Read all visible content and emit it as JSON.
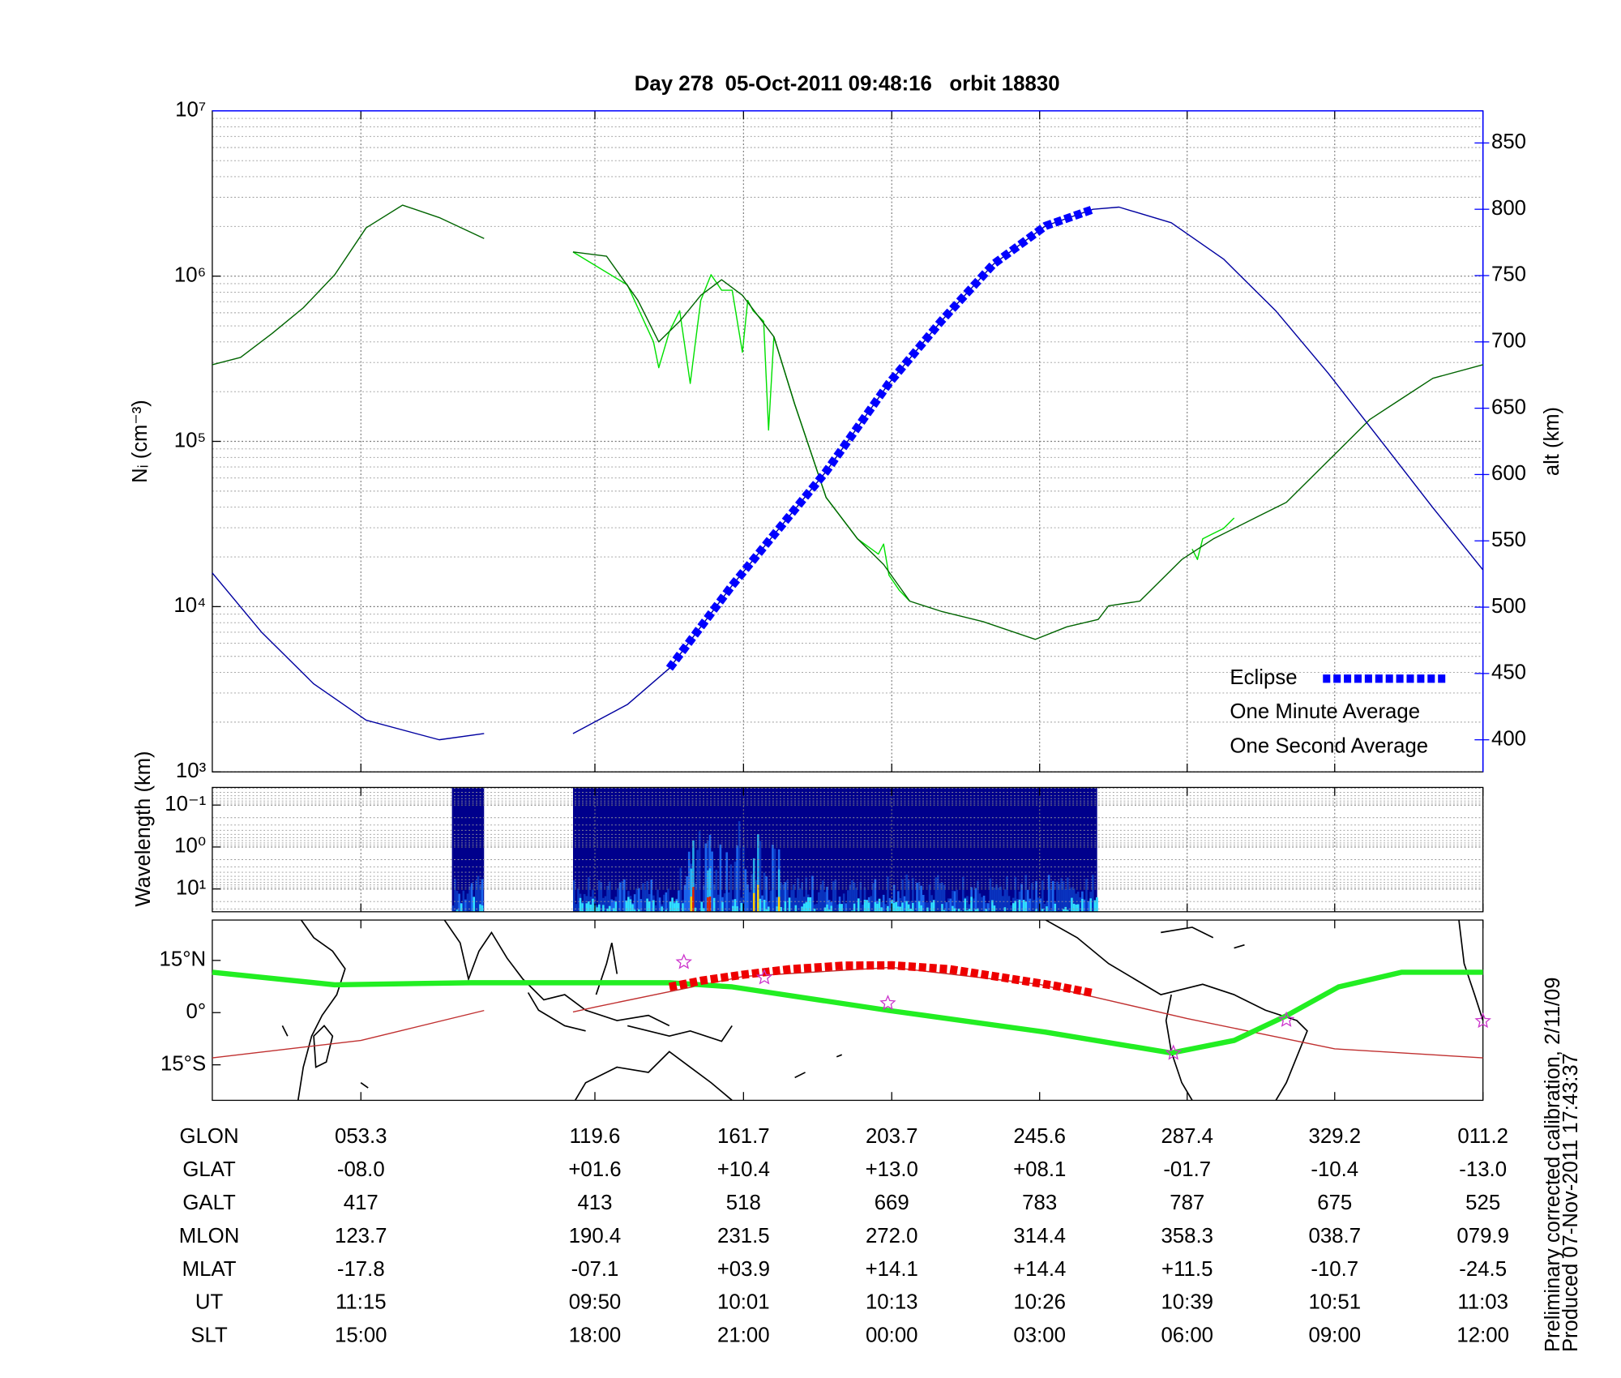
{
  "chart_data": [
    {
      "type": "line",
      "title": "Day 278  05-Oct-2011 09:48:16   orbit 18830",
      "ylabel": "Nᵢ (cm⁻³)",
      "y2label": "alt (km)",
      "xlim": [
        11.2,
        371.2
      ],
      "xticks": [
        53.3,
        119.6,
        161.7,
        203.7,
        245.6,
        287.4,
        329.2,
        371.2
      ],
      "ylim": [
        1000,
        10000000
      ],
      "ylog": true,
      "yticks": [
        {
          "value": 1000,
          "label": "10³"
        },
        {
          "value": 10000,
          "label": "10⁴"
        },
        {
          "value": 100000,
          "label": "10⁵"
        },
        {
          "value": 1000000,
          "label": "10⁶"
        },
        {
          "value": 10000000,
          "label": "10⁷"
        }
      ],
      "y2lim": [
        375.8,
        874.2
      ],
      "y2ticks": [
        400,
        450,
        500,
        550,
        600,
        650,
        700,
        750,
        800,
        850
      ],
      "y2color": "#0000ff",
      "grid": true,
      "legend": "lower right",
      "series": [
        {
          "name": "One Second Average",
          "color": "#00e000",
          "style": "thin",
          "x": [
            113.4,
            128.8,
            136.2,
            137.7,
            140.7,
            143.6,
            146.6,
            148.1,
            149.6,
            152.5,
            155.5,
            158.5,
            161.4,
            162.9,
            164.4,
            167.4,
            168.8,
            170.3,
            176.2,
            185.1,
            194.0,
            199.9,
            201.4,
            202.9,
            205.9,
            208.8,
            250.0,
            288.8,
            290.3,
            291.8,
            294.8,
            297.7,
            300.7
          ],
          "values": [
            1400000,
            885000,
            400000,
            279000,
            462000,
            617000,
            224000,
            400000,
            713000,
            1020000,
            822000,
            822000,
            346000,
            713000,
            617000,
            533000,
            117000,
            430000,
            168000,
            45800,
            25700,
            20800,
            23900,
            15500,
            12500,
            10800,
            null,
            22300,
            19300,
            25700,
            27700,
            29700,
            34400
          ]
        },
        {
          "name": "One Minute Average",
          "color": "#006400",
          "legend_color": "#000000",
          "style": "thin",
          "x": [
            11.2,
            19.2,
            28.1,
            37.0,
            45.9,
            54.8,
            65.1,
            75.5,
            88.2,
            100.0,
            113.4,
            122.9,
            131.8,
            137.7,
            143.6,
            149.6,
            155.5,
            161.4,
            170.3,
            176.2,
            185.1,
            194.0,
            201.4,
            208.8,
            217.7,
            229.6,
            244.4,
            253.3,
            262.2,
            265.1,
            274.0,
            285.9,
            294.8,
            306.6,
            315.5,
            327.3,
            339.2,
            348.1,
            357.0,
            371.2
          ],
          "values": [
            291000,
            322000,
            449000,
            644000,
            1020000,
            1960000,
            2690000,
            2260000,
            1690000,
            null,
            1400000,
            1320000,
            713000,
            400000,
            533000,
            766000,
            951000,
            766000,
            430000,
            168000,
            45800,
            25700,
            18000,
            10800,
            9370,
            8110,
            6340,
            7550,
            8360,
            10100,
            10800,
            19300,
            25700,
            34400,
            42700,
            76000,
            136000,
            181000,
            241000,
            291000
          ]
        },
        {
          "color": "#0000a0",
          "style": "thin",
          "axis": "y2",
          "x": [
            11.2,
            25.1,
            39.9,
            54.8,
            75.5,
            88.2,
            100.0,
            113.4,
            128.8,
            140.7,
            158.5,
            185.1,
            202.9,
            217.7,
            232.5,
            247.3,
            260.7,
            268.1,
            282.9,
            297.7,
            312.5,
            327.3,
            342.2,
            357.0,
            371.2
          ],
          "values": [
            525.8,
            481.3,
            442.2,
            414.8,
            400,
            404.7,
            null,
            404.7,
            426.6,
            453.9,
            516.4,
            602.3,
            668.8,
            715.6,
            758.6,
            787.5,
            800,
            801.6,
            789.8,
            762.5,
            723.4,
            676.6,
            625.8,
            575,
            528.1
          ]
        },
        {
          "name": "Eclipse",
          "color": "#0000ff",
          "style": "dashed-thick",
          "axis": "y2",
          "x": [
            140.7,
            158.5,
            185.1,
            202.9,
            217.7,
            232.5,
            247.3,
            260.7
          ],
          "values": [
            453.9,
            516.4,
            602.3,
            668.8,
            715.6,
            758.6,
            787.5,
            800
          ]
        }
      ]
    },
    {
      "type": "spectrogram",
      "ylabel": "Wavelength (km)",
      "xlim": [
        11.2,
        371.2
      ],
      "xticks": [
        53.3,
        119.6,
        161.7,
        203.7,
        245.6,
        287.4,
        329.2,
        371.2
      ],
      "ylim": [
        0.038,
        35
      ],
      "ylog": true,
      "y_inverted": true,
      "yticks": [
        {
          "value": 0.1,
          "label": "10⁻¹"
        },
        {
          "value": 1,
          "label": "10⁰"
        },
        {
          "value": 10,
          "label": "10¹"
        }
      ],
      "grid": true,
      "coverage": [
        [
          79.1,
          88.2
        ],
        [
          113.4,
          261.9
        ]
      ]
    },
    {
      "type": "map",
      "xlim": [
        11.2,
        371.2
      ],
      "xticks": [
        53.3,
        119.6,
        161.7,
        203.7,
        245.6,
        287.4,
        329.2,
        371.2
      ],
      "ylim": [
        -25.2,
        26.6
      ],
      "yticks": [
        {
          "value": 15,
          "label": "15°N"
        },
        {
          "value": 0,
          "label": "0°"
        },
        {
          "value": -15,
          "label": "15°S"
        }
      ],
      "series": [
        {
          "color": "#c03030",
          "style": "thin",
          "x": [
            11.2,
            53.3,
            88.2,
            100.0,
            113.4,
            119.6,
            161.7,
            203.7,
            245.6,
            287.4,
            329.2,
            371.2
          ],
          "values": [
            -13.0,
            -8.0,
            0.6,
            null,
            0.2,
            1.6,
            10.4,
            13.0,
            8.1,
            -1.7,
            -10.4,
            -13.0
          ]
        },
        {
          "color": "#22ee22",
          "style": "thick",
          "x": [
            11.2,
            45.9,
            84.4,
            140.7,
            158.5,
            202.9,
            247.3,
            282.9,
            300.7,
            315.5,
            330.3,
            348.1,
            371.2
          ],
          "values": [
            11.6,
            8.0,
            8.6,
            8.6,
            7.4,
            0.6,
            -5.6,
            -11.6,
            -8.0,
            -0.9,
            7.4,
            11.6,
            11.6
          ]
        },
        {
          "color": "#ee0000",
          "style": "dashed-thick",
          "x": [
            140.7,
            150.0,
            161.7,
            175.0,
            190.0,
            203.7,
            220.0,
            235.0,
            250.0,
            260.7
          ],
          "values": [
            7.4,
            9.2,
            10.9,
            12.5,
            13.5,
            13.6,
            12.5,
            10.1,
            7.7,
            5.6
          ]
        },
        {
          "color": "#cc33cc",
          "style": "stars",
          "x": [
            144.8,
            167.6,
            202.6,
            283.5,
            315.5,
            371.2
          ],
          "values": [
            14.5,
            10.1,
            2.7,
            -11.6,
            -2.1,
            -2.4
          ]
        }
      ]
    }
  ],
  "table": {
    "rows": [
      [
        "GLON",
        "053.3",
        "119.6",
        "161.7",
        "203.7",
        "245.6",
        "287.4",
        "329.2",
        "011.2"
      ],
      [
        "GLAT",
        "-08.0",
        "+01.6",
        "+10.4",
        "+13.0",
        "+08.1",
        "-01.7",
        "-10.4",
        "-13.0"
      ],
      [
        "GALT",
        "417",
        "413",
        "518",
        "669",
        "783",
        "787",
        "675",
        "525"
      ],
      [
        "MLON",
        "123.7",
        "190.4",
        "231.5",
        "272.0",
        "314.4",
        "358.3",
        "038.7",
        "079.9"
      ],
      [
        "MLAT",
        "-17.8",
        "-07.1",
        "+03.9",
        "+14.1",
        "+14.4",
        "+11.5",
        "-10.7",
        "-24.5"
      ],
      [
        "UT",
        "11:15",
        "09:50",
        "10:01",
        "10:13",
        "10:26",
        "10:39",
        "10:51",
        "11:03"
      ],
      [
        "SLT",
        "15:00",
        "18:00",
        "21:00",
        "00:00",
        "03:00",
        "06:00",
        "09:00",
        "12:00"
      ]
    ]
  },
  "footer": [
    "Preliminary corrected calibration, 2/11/09",
    "Produced 07-Nov-2011 17:43:37"
  ]
}
